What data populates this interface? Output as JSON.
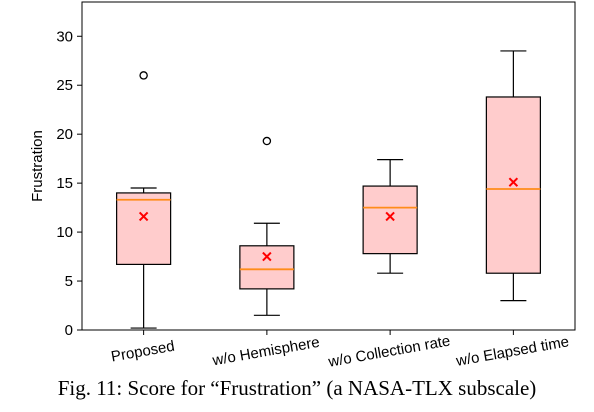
{
  "caption": "Fig. 11: Score for “Frustration” (a NASA-TLX subscale)",
  "colors": {
    "box_fill": "#ffcccc",
    "median": "#ff8c1a",
    "mean_marker": "#ff0000",
    "outlier_edge": "#000000"
  },
  "chart_data": {
    "type": "box",
    "ylabel": "Frustration",
    "ylim": [
      0,
      33.5
    ],
    "yticks": [
      0,
      5,
      10,
      15,
      20,
      25,
      30
    ],
    "ytick_labels": [
      "0",
      "5",
      "10",
      "15",
      "20",
      "25",
      "30"
    ],
    "categories": [
      "Proposed",
      "w/o Hemisphere",
      "w/o Collection rate",
      "w/o Elapsed time"
    ],
    "boxes": [
      {
        "whisker_low": 0.2,
        "q1": 6.7,
        "median": 13.3,
        "q3": 14.0,
        "whisker_high": 14.5,
        "mean": 11.6,
        "outliers": [
          26.0
        ]
      },
      {
        "whisker_low": 1.5,
        "q1": 4.2,
        "median": 6.2,
        "q3": 8.6,
        "whisker_high": 10.9,
        "mean": 7.5,
        "outliers": [
          19.3
        ]
      },
      {
        "whisker_low": 5.8,
        "q1": 7.8,
        "median": 12.5,
        "q3": 14.7,
        "whisker_high": 17.4,
        "mean": 11.6,
        "outliers": []
      },
      {
        "whisker_low": 3.0,
        "q1": 5.8,
        "median": 14.4,
        "q3": 23.8,
        "whisker_high": 28.5,
        "mean": 15.1,
        "outliers": []
      }
    ],
    "grid": false,
    "legend": "none"
  }
}
